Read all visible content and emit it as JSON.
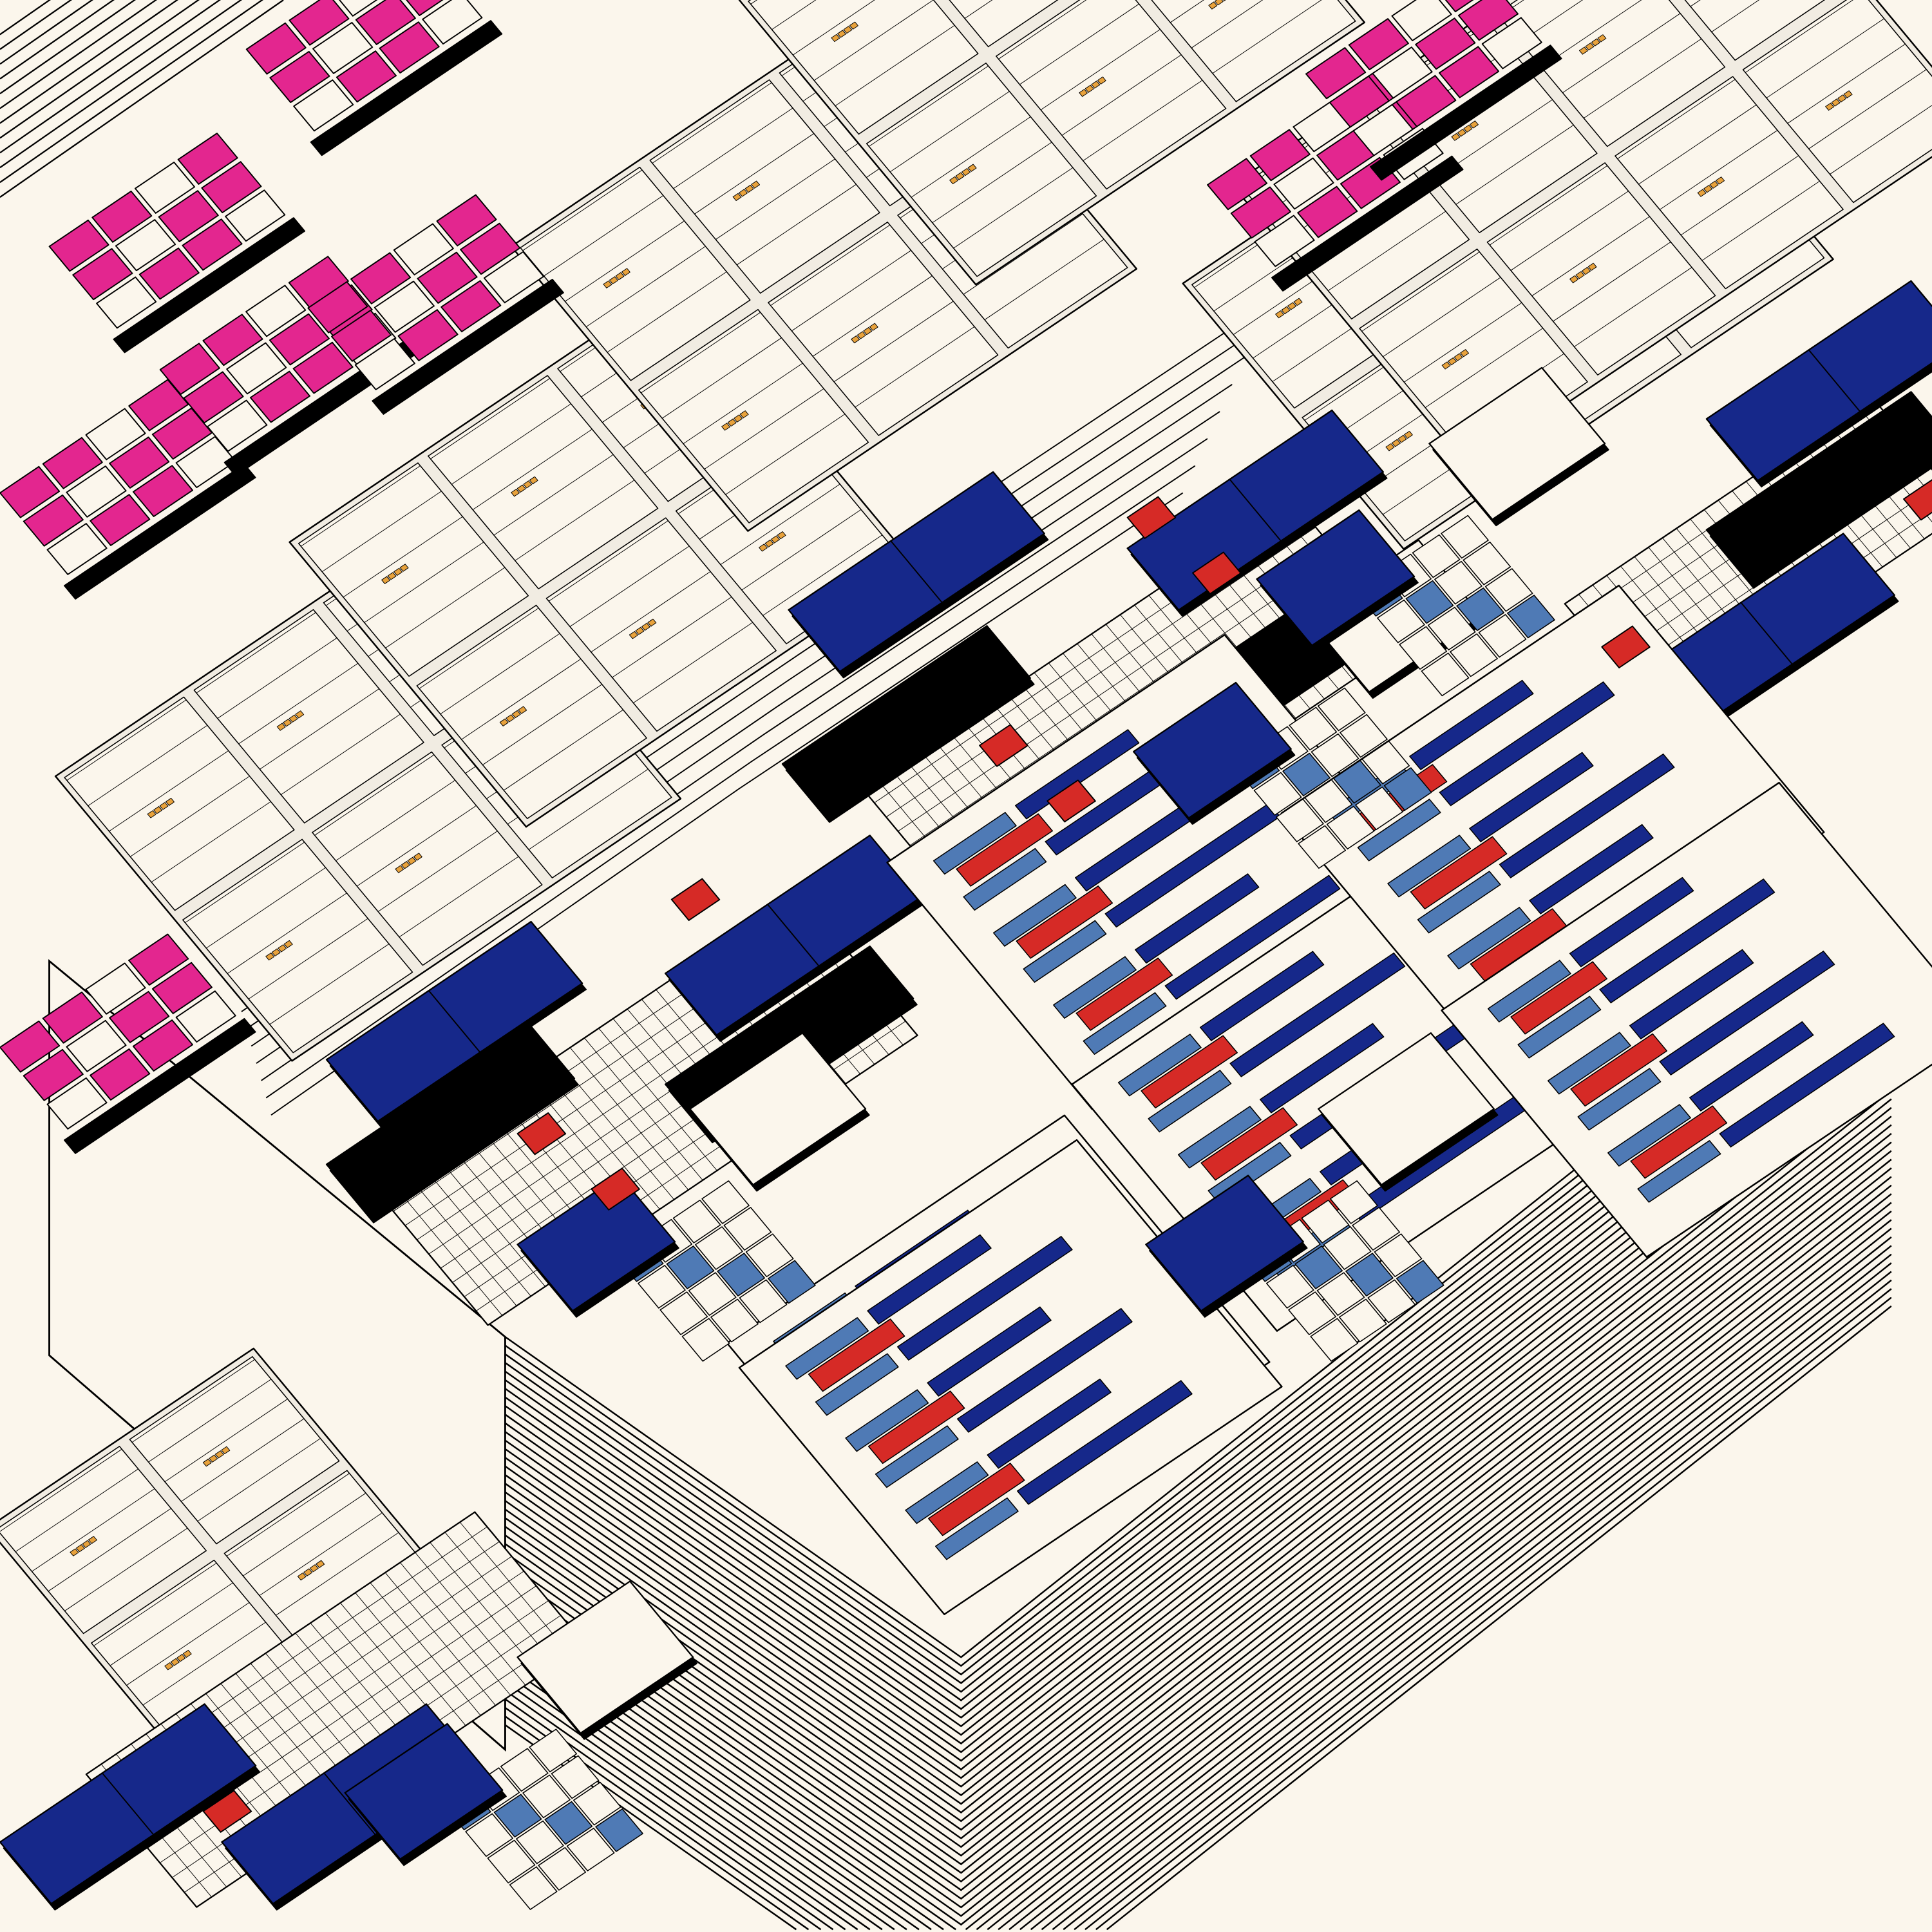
{
  "artwork": {
    "style": "isometric generative circuit-like composition",
    "colors": {
      "background": "#fbf6ec",
      "stroke": "#000000",
      "pink": "#e3268f",
      "blue": "#16288a",
      "light_blue": "#4f7ab5",
      "red": "#d62a26",
      "black": "#000000",
      "orange": "#e8a23c",
      "panel_gray": "#f1ece2"
    }
  }
}
